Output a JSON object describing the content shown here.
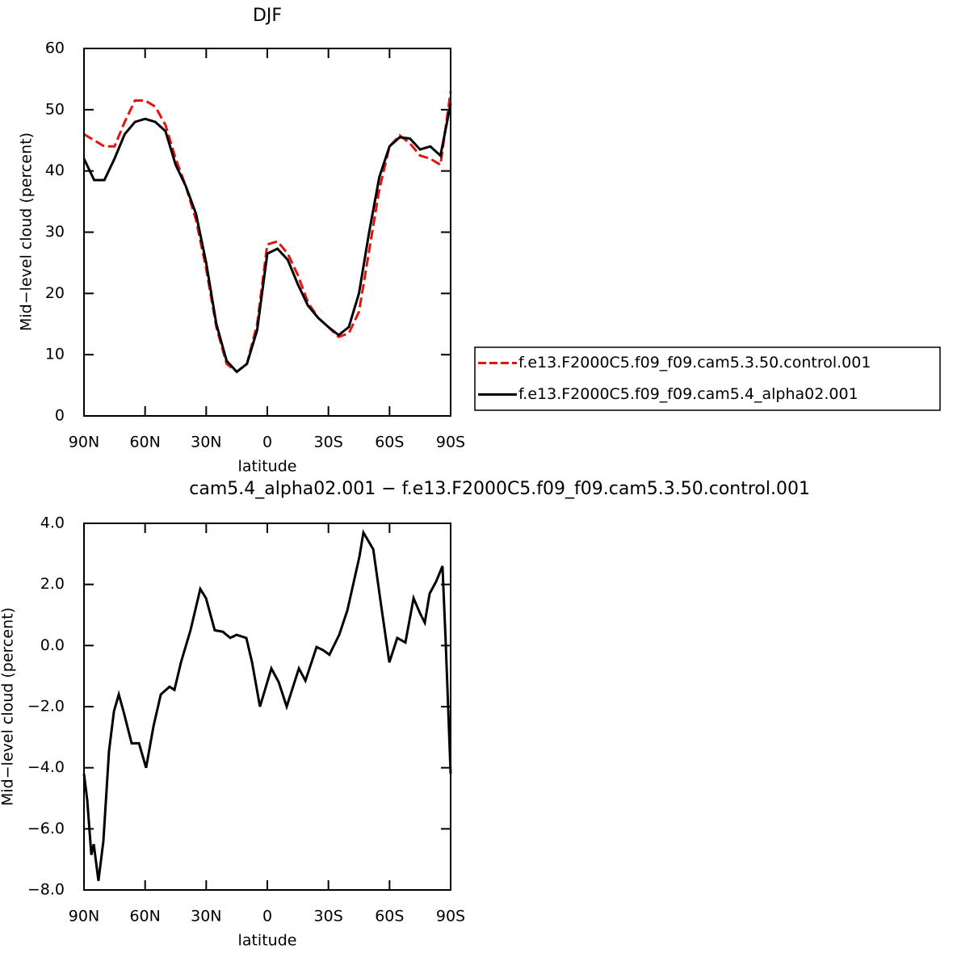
{
  "chart_data": [
    {
      "type": "line",
      "title": "DJF",
      "xlabel": "latitude",
      "ylabel": "Mid−level cloud (percent)",
      "x": [
        90,
        85,
        80,
        75,
        70,
        65,
        60,
        55,
        50,
        45,
        40,
        35,
        30,
        25,
        20,
        15,
        10,
        5,
        0,
        -5,
        -10,
        -15,
        -20,
        -25,
        -30,
        -35,
        -40,
        -45,
        -50,
        -55,
        -60,
        -65,
        -70,
        -75,
        -80,
        -85,
        -90
      ],
      "series": [
        {
          "name": "f.e13.F2000C5.f09_f09.cam5.3.50.control.001",
          "color": "#e8120c",
          "dashed": true,
          "values": [
            46,
            45,
            44,
            44,
            48,
            51.5,
            51.5,
            50.5,
            47.5,
            42,
            37.5,
            32,
            24,
            14.5,
            8.5,
            7.2,
            8.5,
            15,
            28,
            28.5,
            26.5,
            23,
            18.5,
            16,
            14.5,
            12.9,
            13.5,
            17,
            27,
            37,
            44,
            45.8,
            44.5,
            42.5,
            42,
            41,
            53
          ]
        },
        {
          "name": "f.e13.F2000C5.f09_f09.cam5.4_alpha02.001",
          "color": "#000000",
          "dashed": false,
          "values": [
            42,
            38.5,
            38.5,
            42,
            46,
            48,
            48.5,
            48,
            46.5,
            41,
            37.5,
            33,
            25,
            15,
            9,
            7.2,
            8.5,
            14,
            26.5,
            27.3,
            25.5,
            21.5,
            18,
            16,
            14.5,
            13.2,
            14.5,
            20,
            30,
            39,
            44,
            45.5,
            45.3,
            43.5,
            44,
            42.5,
            51
          ]
        }
      ],
      "xlim": [
        90,
        -90
      ],
      "xticks": [
        {
          "value": 90,
          "label": "90N"
        },
        {
          "value": 60,
          "label": "60N"
        },
        {
          "value": 30,
          "label": "30N"
        },
        0,
        {
          "value": -30,
          "label": "30S"
        },
        {
          "value": -60,
          "label": "60S"
        },
        {
          "value": -90,
          "label": "90S"
        }
      ],
      "ylim": [
        0,
        60
      ],
      "yticks": [
        0,
        10,
        20,
        30,
        40,
        50,
        60
      ],
      "legend": "right"
    },
    {
      "type": "line",
      "title": "cam5.4_alpha02.001 − f.e13.F2000C5.f09_f09.cam5.3.50.control.001",
      "xlabel": "latitude",
      "ylabel": "Mid−level cloud (percent)",
      "x": [
        90,
        88.4,
        86.4,
        85.2,
        82.9,
        80.5,
        77.7,
        75.3,
        72.9,
        70.6,
        66.6,
        63,
        59.5,
        55.9,
        52.3,
        48,
        45.6,
        42.4,
        37.7,
        32.9,
        30.1,
        25.8,
        21.8,
        18.2,
        15.1,
        10.3,
        7.5,
        3.6,
        -2,
        -5.6,
        -9.5,
        -15.5,
        -18.7,
        -24.2,
        -27.4,
        -30.5,
        -35.3,
        -39.3,
        -45.2,
        -47.2,
        -52,
        -55.9,
        -59.9,
        -63.8,
        -67.8,
        -71.8,
        -75,
        -77.3,
        -79.7,
        -82.9,
        -86,
        -87.6,
        -90
      ],
      "series": [
        {
          "color": "#000000",
          "dashed": false,
          "values": [
            -4.2,
            -5.05,
            -6.85,
            -6.5,
            -7.7,
            -6.4,
            -3.45,
            -2.15,
            -1.6,
            -2.15,
            -3.2,
            -3.2,
            -4.0,
            -2.65,
            -1.6,
            -1.35,
            -1.45,
            -0.55,
            0.5,
            1.85,
            1.55,
            0.5,
            0.45,
            0.25,
            0.35,
            0.25,
            -0.55,
            -2.0,
            -0.75,
            -1.2,
            -2.0,
            -0.75,
            -1.15,
            -0.05,
            -0.15,
            -0.3,
            0.35,
            1.15,
            2.9,
            3.7,
            3.15,
            1.3,
            -0.55,
            0.25,
            0.1,
            1.55,
            1.05,
            0.75,
            1.7,
            2.1,
            2.6,
            0.1,
            -4.2
          ]
        }
      ],
      "xlim": [
        90,
        -90
      ],
      "xticks": [
        {
          "value": 90,
          "label": "90N"
        },
        {
          "value": 60,
          "label": "60N"
        },
        {
          "value": 30,
          "label": "30N"
        },
        0,
        {
          "value": -30,
          "label": "30S"
        },
        {
          "value": -60,
          "label": "60S"
        },
        {
          "value": -90,
          "label": "90S"
        }
      ],
      "ylim": [
        -8,
        4
      ],
      "yticks": [
        {
          "value": -8,
          "label": "−8.0"
        },
        {
          "value": -6,
          "label": "−6.0"
        },
        {
          "value": -4,
          "label": "−4.0"
        },
        {
          "value": -2,
          "label": "−2.0"
        },
        {
          "value": 0,
          "label": "0.0"
        },
        {
          "value": 2,
          "label": "2.0"
        },
        {
          "value": 4,
          "label": "4.0"
        }
      ]
    }
  ]
}
